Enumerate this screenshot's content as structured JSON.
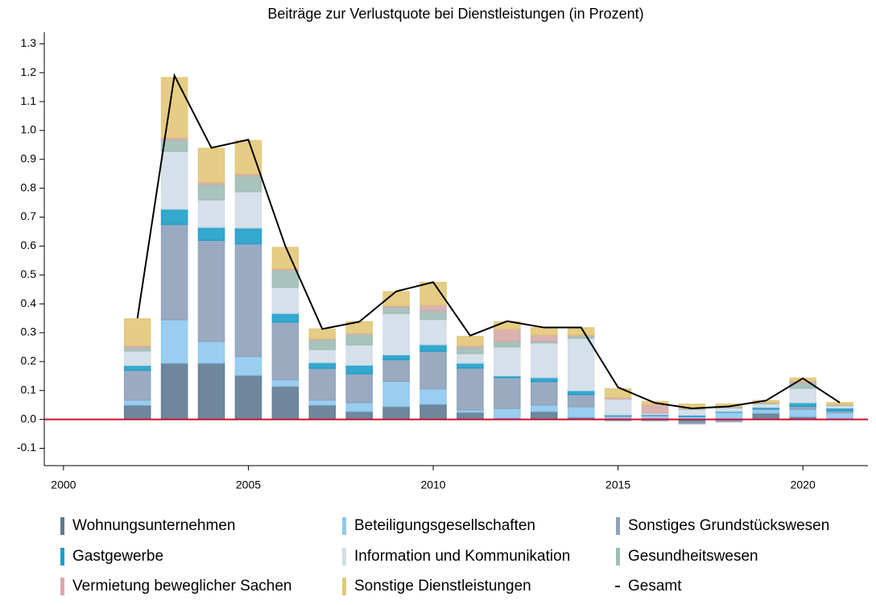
{
  "chart_data": {
    "type": "bar",
    "stacked": true,
    "title": "Beiträge zur Verlustquote bei Dienstleistungen (in Prozent)",
    "x": [
      2002,
      2003,
      2004,
      2005,
      2006,
      2007,
      2008,
      2009,
      2010,
      2011,
      2012,
      2013,
      2014,
      2015,
      2016,
      2017,
      2018,
      2019,
      2020,
      2021
    ],
    "xlim": [
      1999.48,
      2021.76
    ],
    "xticks": [
      2000,
      2005,
      2010,
      2015,
      2020
    ],
    "ylim": [
      -0.16,
      1.34
    ],
    "yticks": [
      -0.1,
      {
        "value": 0,
        "label": "0.0"
      },
      0.1,
      0.2,
      0.3,
      0.4,
      0.5,
      0.6,
      0.7,
      0.8,
      0.9,
      {
        "value": 1,
        "label": "1.0"
      },
      1.1,
      1.2,
      1.3
    ],
    "zero_line_color": "#c8102e",
    "series": [
      {
        "name": "Wohnungsunternehmen",
        "color": "#5f7a91",
        "values": [
          0.05,
          0.195,
          0.195,
          0.153,
          0.115,
          0.05,
          0.028,
          0.045,
          0.053,
          0.025,
          0.005,
          0.028,
          0.008,
          0.002,
          0.002,
          -0.01,
          -0.003,
          0.022,
          0.01,
          0.003
        ]
      },
      {
        "name": "Beteiligungsgesellschaften",
        "color": "#8ec9ee",
        "values": [
          0.017,
          0.15,
          0.075,
          0.065,
          0.022,
          0.017,
          0.03,
          0.087,
          0.053,
          0.008,
          0.033,
          0.022,
          0.036,
          0.008,
          0.01,
          0.01,
          0.025,
          0.012,
          0.025,
          0.02
        ]
      },
      {
        "name": "Sonstiges Grundstückswesen",
        "color": "#8fa2ba",
        "values": [
          0.103,
          0.33,
          0.35,
          0.39,
          0.2,
          0.11,
          0.1,
          0.075,
          0.13,
          0.145,
          0.107,
          0.081,
          0.042,
          0.003,
          0.003,
          -0.005,
          -0.005,
          0.003,
          0.01,
          0.007
        ]
      },
      {
        "name": "Gastgewerbe",
        "color": "#1f9ec9",
        "values": [
          0.017,
          0.053,
          0.045,
          0.055,
          0.03,
          0.02,
          0.03,
          0.017,
          0.023,
          0.017,
          0.006,
          0.014,
          0.014,
          0.003,
          0.002,
          0.005,
          0.003,
          0.005,
          0.013,
          0.01
        ]
      },
      {
        "name": "Information und Kommunikation",
        "color": "#d1dde8",
        "values": [
          0.05,
          0.2,
          0.095,
          0.125,
          0.09,
          0.045,
          0.07,
          0.143,
          0.087,
          0.033,
          0.1,
          0.12,
          0.181,
          0.055,
          0.005,
          0.02,
          0.012,
          0.012,
          0.05,
          0.008
        ]
      },
      {
        "name": "Gesundheitswesen",
        "color": "#9fbdb5",
        "values": [
          0.011,
          0.04,
          0.053,
          0.056,
          0.06,
          0.035,
          0.037,
          0.022,
          0.03,
          0.022,
          0.02,
          0.006,
          0.008,
          -0.005,
          -0.005,
          0.003,
          0.003,
          0.003,
          0.02,
          0.002
        ]
      },
      {
        "name": "Vermietung beweglicher Sachen",
        "color": "#d6aaa8",
        "values": [
          0.008,
          0.008,
          0.008,
          0.006,
          0.005,
          0.003,
          0.003,
          0.005,
          0.02,
          0.006,
          0.042,
          0.022,
          0.003,
          0.005,
          0.03,
          0.003,
          0.002,
          0.002,
          0.005,
          0.002
        ]
      },
      {
        "name": "Sonstige Dienstleistungen",
        "color": "#e2c878",
        "values": [
          0.092,
          0.207,
          0.117,
          0.115,
          0.073,
          0.033,
          0.04,
          0.048,
          0.078,
          0.031,
          0.025,
          0.025,
          0.025,
          0.03,
          0.01,
          0.012,
          0.008,
          0.006,
          0.01,
          0.006
        ]
      },
      {
        "name": "Gesamt",
        "type": "line",
        "color": "#000000",
        "values": [
          0.35,
          1.19,
          0.94,
          0.968,
          0.6,
          0.313,
          0.338,
          0.443,
          0.475,
          0.29,
          0.34,
          0.318,
          0.318,
          0.111,
          0.057,
          0.038,
          0.045,
          0.065,
          0.142,
          0.058
        ]
      }
    ]
  }
}
